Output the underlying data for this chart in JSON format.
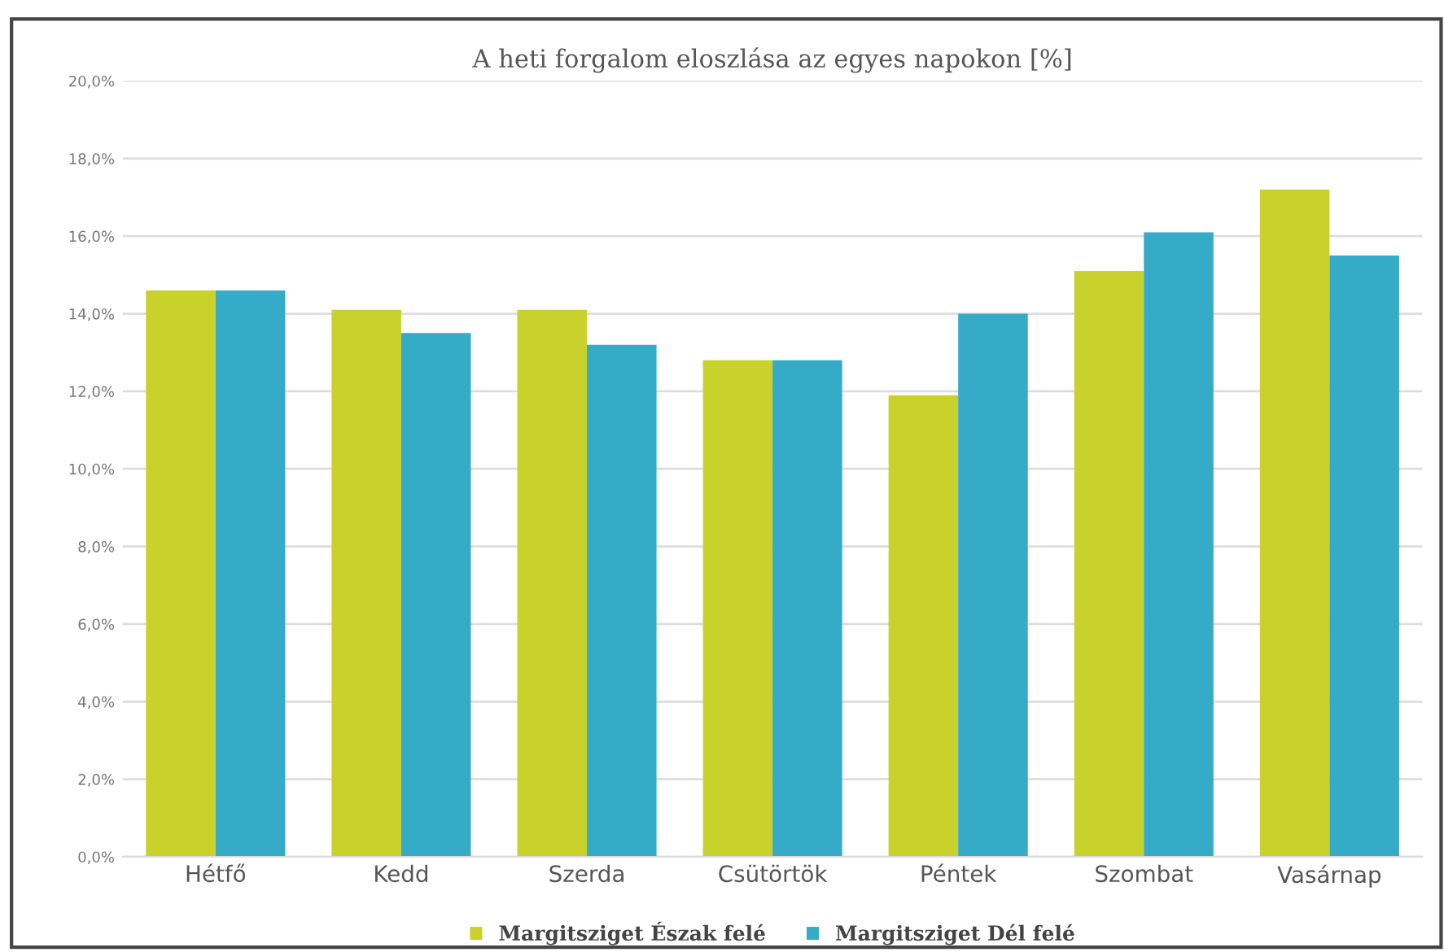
{
  "chart_data": {
    "type": "bar",
    "title": "A heti forgalom eloszlása az egyes napokon [%]",
    "categories": [
      "Hétfő",
      "Kedd",
      "Szerda",
      "Csütörtök",
      "Péntek",
      "Szombat",
      "Vasárnap"
    ],
    "series": [
      {
        "name": "Margitsziget Észak felé",
        "color": "#c9d22a",
        "values": [
          14.6,
          14.1,
          14.1,
          12.8,
          11.9,
          15.1,
          17.2
        ]
      },
      {
        "name": "Margitsziget Dél felé",
        "color": "#35abc8",
        "values": [
          14.6,
          13.5,
          13.2,
          12.8,
          14.0,
          16.1,
          15.5
        ]
      }
    ],
    "ylim": [
      0,
      20
    ],
    "yticks": [
      {
        "value": 0,
        "label": "0,0%"
      },
      {
        "value": 2,
        "label": "2,0%"
      },
      {
        "value": 4,
        "label": "4,0%"
      },
      {
        "value": 6,
        "label": "6,0%"
      },
      {
        "value": 8,
        "label": "8,0%"
      },
      {
        "value": 10,
        "label": "10,0%"
      },
      {
        "value": 12,
        "label": "12,0%"
      },
      {
        "value": 14,
        "label": "14,0%"
      },
      {
        "value": 16,
        "label": "16,0%"
      },
      {
        "value": 18,
        "label": "18,0%"
      },
      {
        "value": 20,
        "label": "20,0%"
      }
    ],
    "grid": "y",
    "legend": "bottom"
  }
}
